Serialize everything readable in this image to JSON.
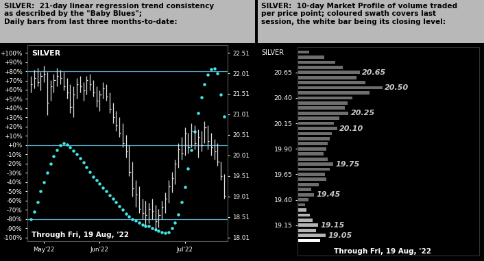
{
  "chart_data": [
    {
      "type": "hlc_trend",
      "title": "SILVER:  21-day linear regression trend consistency\nas described by the \"Baby Blues\";\nDaily bars from last three months-to-date:",
      "label": "SILVER",
      "note": "Through Fri, 19 Aug, '22",
      "categories": [
        null,
        null,
        null,
        null,
        "May'22",
        null,
        null,
        null,
        null,
        null,
        null,
        null,
        null,
        null,
        null,
        null,
        null,
        null,
        null,
        null,
        null,
        "Jun'22",
        null,
        null,
        null,
        null,
        null,
        null,
        null,
        null,
        null,
        null,
        null,
        null,
        null,
        null,
        null,
        null,
        null,
        null,
        null,
        null,
        null,
        null,
        null,
        null,
        null,
        "Jul'22",
        null,
        null,
        null,
        null,
        null,
        null,
        null,
        null,
        null,
        null,
        null,
        null
      ],
      "xlim": [
        -1,
        60
      ],
      "ylim": [
        -104,
        108
      ],
      "yticks": [
        {
          "value": 100,
          "label": "+100%"
        },
        {
          "value": 90,
          "label": "+90%"
        },
        {
          "value": 80,
          "label": "+80%"
        },
        {
          "value": 70,
          "label": "+70%"
        },
        {
          "value": 60,
          "label": "+60%"
        },
        {
          "value": 50,
          "label": "+50%"
        },
        {
          "value": 40,
          "label": "+40%"
        },
        {
          "value": 30,
          "label": "+30%"
        },
        {
          "value": 20,
          "label": "+20%"
        },
        {
          "value": 10,
          "label": "+10%"
        },
        {
          "value": 0,
          "label": "+0%"
        },
        {
          "value": -10,
          "label": "-10%"
        },
        {
          "value": -20,
          "label": "-20%"
        },
        {
          "value": -30,
          "label": "-30%"
        },
        {
          "value": -40,
          "label": "-40%"
        },
        {
          "value": -50,
          "label": "-50%"
        },
        {
          "value": -60,
          "label": "-60%"
        },
        {
          "value": -70,
          "label": "-70%"
        },
        {
          "value": -80,
          "label": "-80%"
        },
        {
          "value": -90,
          "label": "-90%"
        },
        {
          "value": -100,
          "label": "-100%"
        }
      ],
      "y2lim": [
        17.92,
        22.69
      ],
      "y2ticks": [
        18.01,
        18.51,
        19.01,
        19.51,
        20.01,
        20.51,
        21.01,
        21.51,
        22.01,
        22.51
      ],
      "hlines": {
        "values": [
          80,
          0,
          -80
        ],
        "color": "#5fb0d0"
      },
      "series": [
        {
          "type": "scatter",
          "marker": "o",
          "color": "#40e8e8",
          "values": [
            -80,
            -72,
            -62,
            -50,
            -40,
            -30,
            -20,
            -12,
            -5,
            0,
            2,
            1,
            -2,
            -6,
            -10,
            -14,
            -19,
            -24,
            -29,
            -34,
            -38,
            -42,
            -46,
            -50,
            -54,
            -58,
            -62,
            -66,
            -70,
            -74,
            -77,
            -80,
            -82,
            -84,
            -86,
            -88,
            -88,
            -90,
            -91,
            -93,
            -94,
            -95,
            -94,
            -90,
            -84,
            -75,
            -62,
            -45,
            -25,
            -5,
            15,
            35,
            52,
            66,
            76,
            82,
            83,
            78,
            55,
            31
          ]
        },
        {
          "type": "hlc",
          "axis": "y2",
          "color": "#e0e0e0",
          "high": [
            21.95,
            22.1,
            22.15,
            22.05,
            22.2,
            22.05,
            21.85,
            22.0,
            22.15,
            22.1,
            22.05,
            21.9,
            21.75,
            21.7,
            21.9,
            21.95,
            21.8,
            21.95,
            22.0,
            21.85,
            21.7,
            21.6,
            21.8,
            21.75,
            21.55,
            21.3,
            21.1,
            20.95,
            20.8,
            20.5,
            20.25,
            19.85,
            19.4,
            19.25,
            18.95,
            18.9,
            18.85,
            18.95,
            18.8,
            18.7,
            18.9,
            19.1,
            19.4,
            19.6,
            19.9,
            20.3,
            20.45,
            20.7,
            20.55,
            20.8,
            20.75,
            20.65,
            20.6,
            20.85,
            20.75,
            20.55,
            20.4,
            20.3,
            19.85,
            19.55
          ],
          "low": [
            21.55,
            21.65,
            21.7,
            21.6,
            21.8,
            21.0,
            21.35,
            21.55,
            21.7,
            21.75,
            21.6,
            21.4,
            21.05,
            20.95,
            21.4,
            21.55,
            21.35,
            21.5,
            21.6,
            21.45,
            21.2,
            21.1,
            21.4,
            21.35,
            21.05,
            20.8,
            20.6,
            20.45,
            20.2,
            19.95,
            19.5,
            19.0,
            18.75,
            18.6,
            18.45,
            18.3,
            18.35,
            18.45,
            18.2,
            18.25,
            18.45,
            18.6,
            18.85,
            19.1,
            19.3,
            19.7,
            19.9,
            20.0,
            20.05,
            20.2,
            20.15,
            19.95,
            20.1,
            20.3,
            20.15,
            20.0,
            19.9,
            19.75,
            19.4,
            18.95
          ],
          "close": [
            21.75,
            21.9,
            21.8,
            21.95,
            22.0,
            21.3,
            21.7,
            21.85,
            21.95,
            21.9,
            21.7,
            21.55,
            21.2,
            21.5,
            21.75,
            21.7,
            21.6,
            21.85,
            21.75,
            21.55,
            21.35,
            21.5,
            21.65,
            21.45,
            21.15,
            20.95,
            20.75,
            20.55,
            20.3,
            20.1,
            19.6,
            19.2,
            19.05,
            18.7,
            18.6,
            18.55,
            18.7,
            18.65,
            18.4,
            18.55,
            18.75,
            18.95,
            19.25,
            19.45,
            19.8,
            20.15,
            20.05,
            20.55,
            20.2,
            20.6,
            20.3,
            20.45,
            20.25,
            20.7,
            20.35,
            20.2,
            20.1,
            19.85,
            19.5,
            19.03
          ]
        }
      ]
    },
    {
      "type": "bar",
      "orientation": "horizontal",
      "title": "SILVER:  10-day Market Profile of volume traded\nper price point; coloured swath covers last\nsession, the white bar being its closing level:",
      "label": "SILVER",
      "note": "Through Fri, 19 Aug, '22",
      "tick_labels": "y",
      "x": [
        19.0,
        19.05,
        19.1,
        19.15,
        19.2,
        19.25,
        19.3,
        19.35,
        19.4,
        19.45,
        19.5,
        19.55,
        19.6,
        19.65,
        19.7,
        19.75,
        19.8,
        19.85,
        19.9,
        19.95,
        20.0,
        20.05,
        20.1,
        20.15,
        20.2,
        20.25,
        20.3,
        20.35,
        20.4,
        20.45,
        20.5,
        20.55,
        20.6,
        20.65,
        20.7,
        20.75,
        20.8,
        20.85
      ],
      "values": [
        30,
        37,
        24,
        27,
        20,
        16,
        12,
        10,
        14,
        22,
        18,
        28,
        38,
        36,
        42,
        47,
        40,
        34,
        38,
        40,
        42,
        45,
        52,
        48,
        55,
        67,
        62,
        66,
        72,
        95,
        112,
        90,
        78,
        82,
        60,
        50,
        35,
        15
      ],
      "colors": [
        "#ffffff",
        "#b4b4b4",
        "#b4b4b4",
        "#b4b4b4",
        "#b4b4b4",
        "#b4b4b4",
        "#b4b4b4",
        "#6e6e6e",
        "#6e6e6e",
        "#6e6e6e",
        "#6e6e6e",
        "#6e6e6e",
        "#6e6e6e",
        "#6e6e6e",
        "#6e6e6e",
        "#6e6e6e",
        "#6e6e6e",
        "#6e6e6e",
        "#6e6e6e",
        "#6e6e6e",
        "#6e6e6e",
        "#6e6e6e",
        "#6e6e6e",
        "#6e6e6e",
        "#6e6e6e",
        "#6e6e6e",
        "#6e6e6e",
        "#6e6e6e",
        "#6e6e6e",
        "#6e6e6e",
        "#6e6e6e",
        "#6e6e6e",
        "#6e6e6e",
        "#6e6e6e",
        "#6e6e6e",
        "#6e6e6e",
        "#6e6e6e",
        "#6e6e6e"
      ],
      "xlim": [
        0,
        240
      ],
      "ylim": [
        18.85,
        20.9
      ],
      "yticks": [
        {
          "value": 20.65,
          "label": "20.65"
        },
        {
          "value": 20.4,
          "label": "20.40"
        },
        {
          "value": 20.15,
          "label": "20.15"
        },
        {
          "value": 19.9,
          "label": "19.90"
        },
        {
          "value": 19.65,
          "label": "19.65"
        },
        {
          "value": 19.4,
          "label": "19.40"
        },
        {
          "value": 19.15,
          "label": "19.15"
        }
      ],
      "annotations": [
        {
          "value": 20.65,
          "label": "20.65"
        },
        {
          "value": 20.5,
          "label": "20.50"
        },
        {
          "value": 20.25,
          "label": "20.25"
        },
        {
          "value": 20.1,
          "label": "20.10"
        },
        {
          "value": 19.75,
          "label": "19.75"
        },
        {
          "value": 19.45,
          "label": "19.45"
        },
        {
          "value": 19.15,
          "label": "19.15"
        },
        {
          "value": 19.05,
          "label": "19.05"
        }
      ]
    }
  ]
}
